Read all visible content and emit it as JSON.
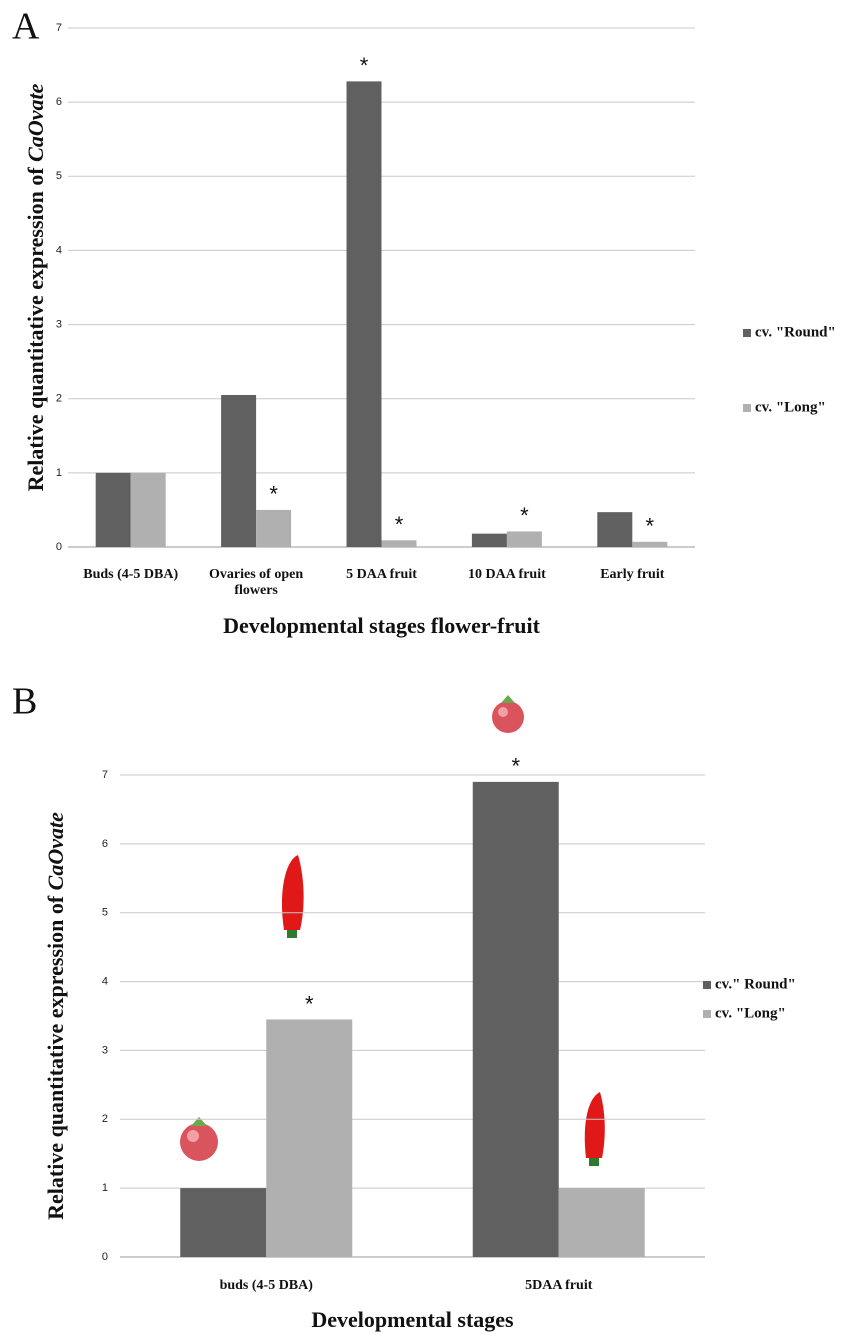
{
  "chart_data": [
    {
      "type": "bar",
      "panel": "A",
      "ylabel": "Relative quantitative expression of",
      "ylabel_gene": "CaOvate",
      "xlabel": "Developmental stages flower-fruit",
      "categories": [
        "Buds (4-5 DBA)",
        "Ovaries of open flowers",
        "5 DAA fruit",
        "10 DAA fruit",
        "Early fruit"
      ],
      "series": [
        {
          "name": "cv. \"Round\"",
          "color": "#606060",
          "values": [
            1,
            2.05,
            6.28,
            0.18,
            0.47
          ],
          "annotations": [
            null,
            null,
            "*",
            null,
            null
          ]
        },
        {
          "name": "cv. \"Long\"",
          "color": "#b0b0b0",
          "values": [
            1,
            0.5,
            0.09,
            0.21,
            0.07
          ],
          "annotations": [
            null,
            "*",
            "*",
            "*",
            "*"
          ]
        }
      ],
      "ylim": [
        0,
        7
      ],
      "yticks": [
        0,
        1,
        2,
        3,
        4,
        5,
        6,
        7
      ],
      "grid": true,
      "legend": "right"
    },
    {
      "type": "bar",
      "panel": "B",
      "ylabel": "Relative quantitative expression of",
      "ylabel_gene": "CaOvate",
      "xlabel": "Developmental stages",
      "categories": [
        "buds (4-5 DBA)",
        "5DAA fruit"
      ],
      "series": [
        {
          "name": "cv.\" Round\"",
          "color": "#606060",
          "values": [
            1,
            6.9
          ],
          "annotations": [
            null,
            "*"
          ]
        },
        {
          "name": "cv. \"Long\"",
          "color": "#b0b0b0",
          "values": [
            3.45,
            1
          ],
          "annotations": [
            "*",
            null
          ]
        }
      ],
      "ylim": [
        0,
        7
      ],
      "yticks": [
        0,
        1,
        2,
        3,
        4,
        5,
        6,
        7
      ],
      "grid": true,
      "legend": "right"
    }
  ]
}
